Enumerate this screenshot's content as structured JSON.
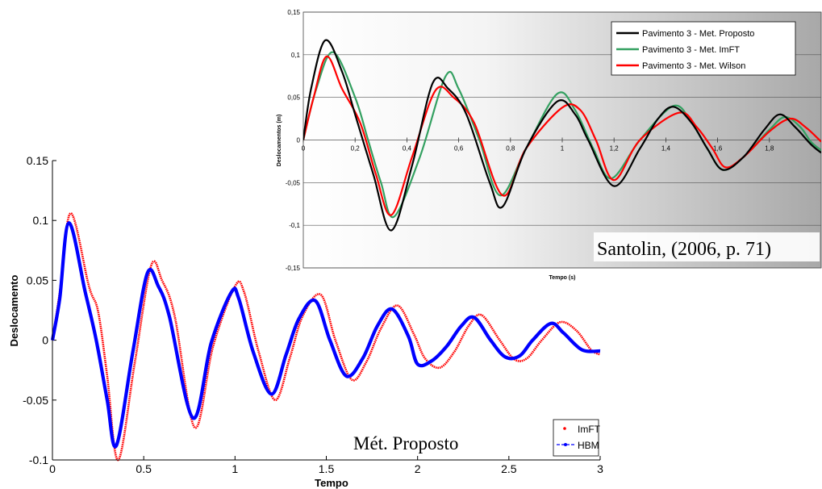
{
  "chart_data": [
    {
      "type": "line",
      "title": "",
      "xlabel": "Tempo",
      "ylabel": "Deslocamento",
      "xlim": [
        0,
        3
      ],
      "ylim": [
        -0.1,
        0.15
      ],
      "xticks": [
        "0",
        "0.5",
        "1",
        "1.5",
        "2",
        "2.5",
        "3"
      ],
      "yticks": [
        "-0.1",
        "-0.05",
        "0",
        "0.05",
        "0.1",
        "0.15"
      ],
      "grid": false,
      "legend_position": "bottom-right",
      "annotation": "Mét. Proposto",
      "series": [
        {
          "name": "ImFT",
          "color": "#ff0000",
          "x": [
            0,
            0.04,
            0.1,
            0.2,
            0.25,
            0.3,
            0.36,
            0.45,
            0.54,
            0.6,
            0.67,
            0.78,
            0.88,
            1.0,
            1.05,
            1.13,
            1.22,
            1.3,
            1.37,
            1.47,
            1.55,
            1.64,
            1.72,
            1.8,
            1.89,
            1.98,
            2.04,
            2.12,
            2.2,
            2.28,
            2.35,
            2.45,
            2.53,
            2.6,
            2.68,
            2.78,
            2.87,
            2.95,
            3.0
          ],
          "y": [
            0,
            0.04,
            0.106,
            0.045,
            0.024,
            -0.03,
            -0.1,
            -0.02,
            0.062,
            0.05,
            0.02,
            -0.073,
            -0.005,
            0.045,
            0.04,
            -0.01,
            -0.05,
            -0.015,
            0.02,
            0.038,
            0.0,
            -0.033,
            -0.018,
            0.01,
            0.029,
            0.005,
            -0.015,
            -0.023,
            -0.01,
            0.012,
            0.021,
            0.0,
            -0.016,
            -0.015,
            0.0,
            0.015,
            0.008,
            -0.008,
            -0.012
          ]
        },
        {
          "name": "HBM",
          "color": "#0000ff",
          "x": [
            0,
            0.04,
            0.09,
            0.18,
            0.24,
            0.3,
            0.35,
            0.44,
            0.52,
            0.58,
            0.64,
            0.77,
            0.87,
            0.98,
            1.02,
            1.1,
            1.2,
            1.28,
            1.35,
            1.44,
            1.52,
            1.61,
            1.7,
            1.78,
            1.86,
            1.95,
            2.0,
            2.08,
            2.16,
            2.24,
            2.31,
            2.4,
            2.48,
            2.56,
            2.63,
            2.73,
            2.8,
            2.9,
            3.0
          ],
          "y": [
            0,
            0.035,
            0.098,
            0.04,
            0.0,
            -0.05,
            -0.088,
            -0.01,
            0.056,
            0.045,
            0.02,
            -0.065,
            -0.002,
            0.04,
            0.035,
            -0.01,
            -0.045,
            -0.012,
            0.018,
            0.033,
            0.0,
            -0.03,
            -0.015,
            0.012,
            0.026,
            0.003,
            -0.02,
            -0.017,
            -0.005,
            0.012,
            0.019,
            0.0,
            -0.014,
            -0.013,
            0.0,
            0.014,
            0.006,
            -0.008,
            -0.009
          ]
        }
      ]
    },
    {
      "type": "line",
      "title": "",
      "xlabel": "Tempo (s)",
      "ylabel": "Deslocamentos (m)",
      "xlim": [
        0,
        2
      ],
      "ylim": [
        -0.15,
        0.15
      ],
      "xticks": [
        "0",
        "0,2",
        "0,4",
        "0,6",
        "0,8",
        "1",
        "1,2",
        "1,4",
        "1,6",
        "1,8"
      ],
      "yticks": [
        "-0,15",
        "-0,1",
        "-0,05",
        "0",
        "0,05",
        "0,1",
        "0,15"
      ],
      "grid": true,
      "legend_position": "top-right",
      "annotation": "Santolin, (2006, p. 71)",
      "series": [
        {
          "name": "Pavimento 3 - Met. Proposto",
          "color": "#000000",
          "x": [
            0,
            0.03,
            0.085,
            0.15,
            0.2,
            0.27,
            0.34,
            0.42,
            0.5,
            0.56,
            0.63,
            0.72,
            0.77,
            0.86,
            0.98,
            1.05,
            1.1,
            1.2,
            1.3,
            1.37,
            1.43,
            1.5,
            1.56,
            1.62,
            1.7,
            1.78,
            1.84,
            1.9,
            1.96,
            2.0
          ],
          "y": [
            0,
            0.06,
            0.117,
            0.08,
            0.03,
            -0.04,
            -0.106,
            -0.03,
            0.067,
            0.06,
            0.03,
            -0.05,
            -0.078,
            -0.01,
            0.045,
            0.03,
            0.0,
            -0.054,
            -0.01,
            0.025,
            0.039,
            0.02,
            -0.01,
            -0.035,
            -0.02,
            0.012,
            0.03,
            0.015,
            -0.005,
            -0.015
          ]
        },
        {
          "name": "Pavimento 3 - Met. ImFT",
          "color": "#33a060",
          "x": [
            0,
            0.05,
            0.115,
            0.2,
            0.25,
            0.3,
            0.35,
            0.45,
            0.55,
            0.6,
            0.68,
            0.76,
            0.86,
            0.98,
            1.05,
            1.12,
            1.19,
            1.3,
            1.43,
            1.5,
            1.56,
            1.62,
            1.7,
            1.8,
            1.86,
            1.92,
            1.96,
            2.0
          ],
          "y": [
            0,
            0.06,
            0.103,
            0.05,
            0.0,
            -0.05,
            -0.09,
            -0.02,
            0.075,
            0.06,
            0.0,
            -0.065,
            -0.01,
            0.054,
            0.035,
            -0.01,
            -0.045,
            0.0,
            0.04,
            0.02,
            -0.01,
            -0.035,
            -0.02,
            0.012,
            0.027,
            0.015,
            -0.002,
            -0.012
          ]
        },
        {
          "name": "Pavimento 3 - Met. Wilson",
          "color": "#ff0000",
          "x": [
            0,
            0.04,
            0.09,
            0.15,
            0.22,
            0.28,
            0.34,
            0.42,
            0.51,
            0.58,
            0.66,
            0.77,
            0.86,
            1.0,
            1.07,
            1.13,
            1.2,
            1.3,
            1.45,
            1.52,
            1.58,
            1.63,
            1.7,
            1.8,
            1.88,
            1.94,
            2.0
          ],
          "y": [
            0,
            0.05,
            0.098,
            0.06,
            0.02,
            -0.04,
            -0.088,
            -0.02,
            0.058,
            0.05,
            0.02,
            -0.065,
            -0.01,
            0.038,
            0.035,
            0.0,
            -0.047,
            0.0,
            0.032,
            0.015,
            -0.01,
            -0.032,
            -0.02,
            0.01,
            0.025,
            0.015,
            -0.002
          ]
        }
      ]
    }
  ]
}
